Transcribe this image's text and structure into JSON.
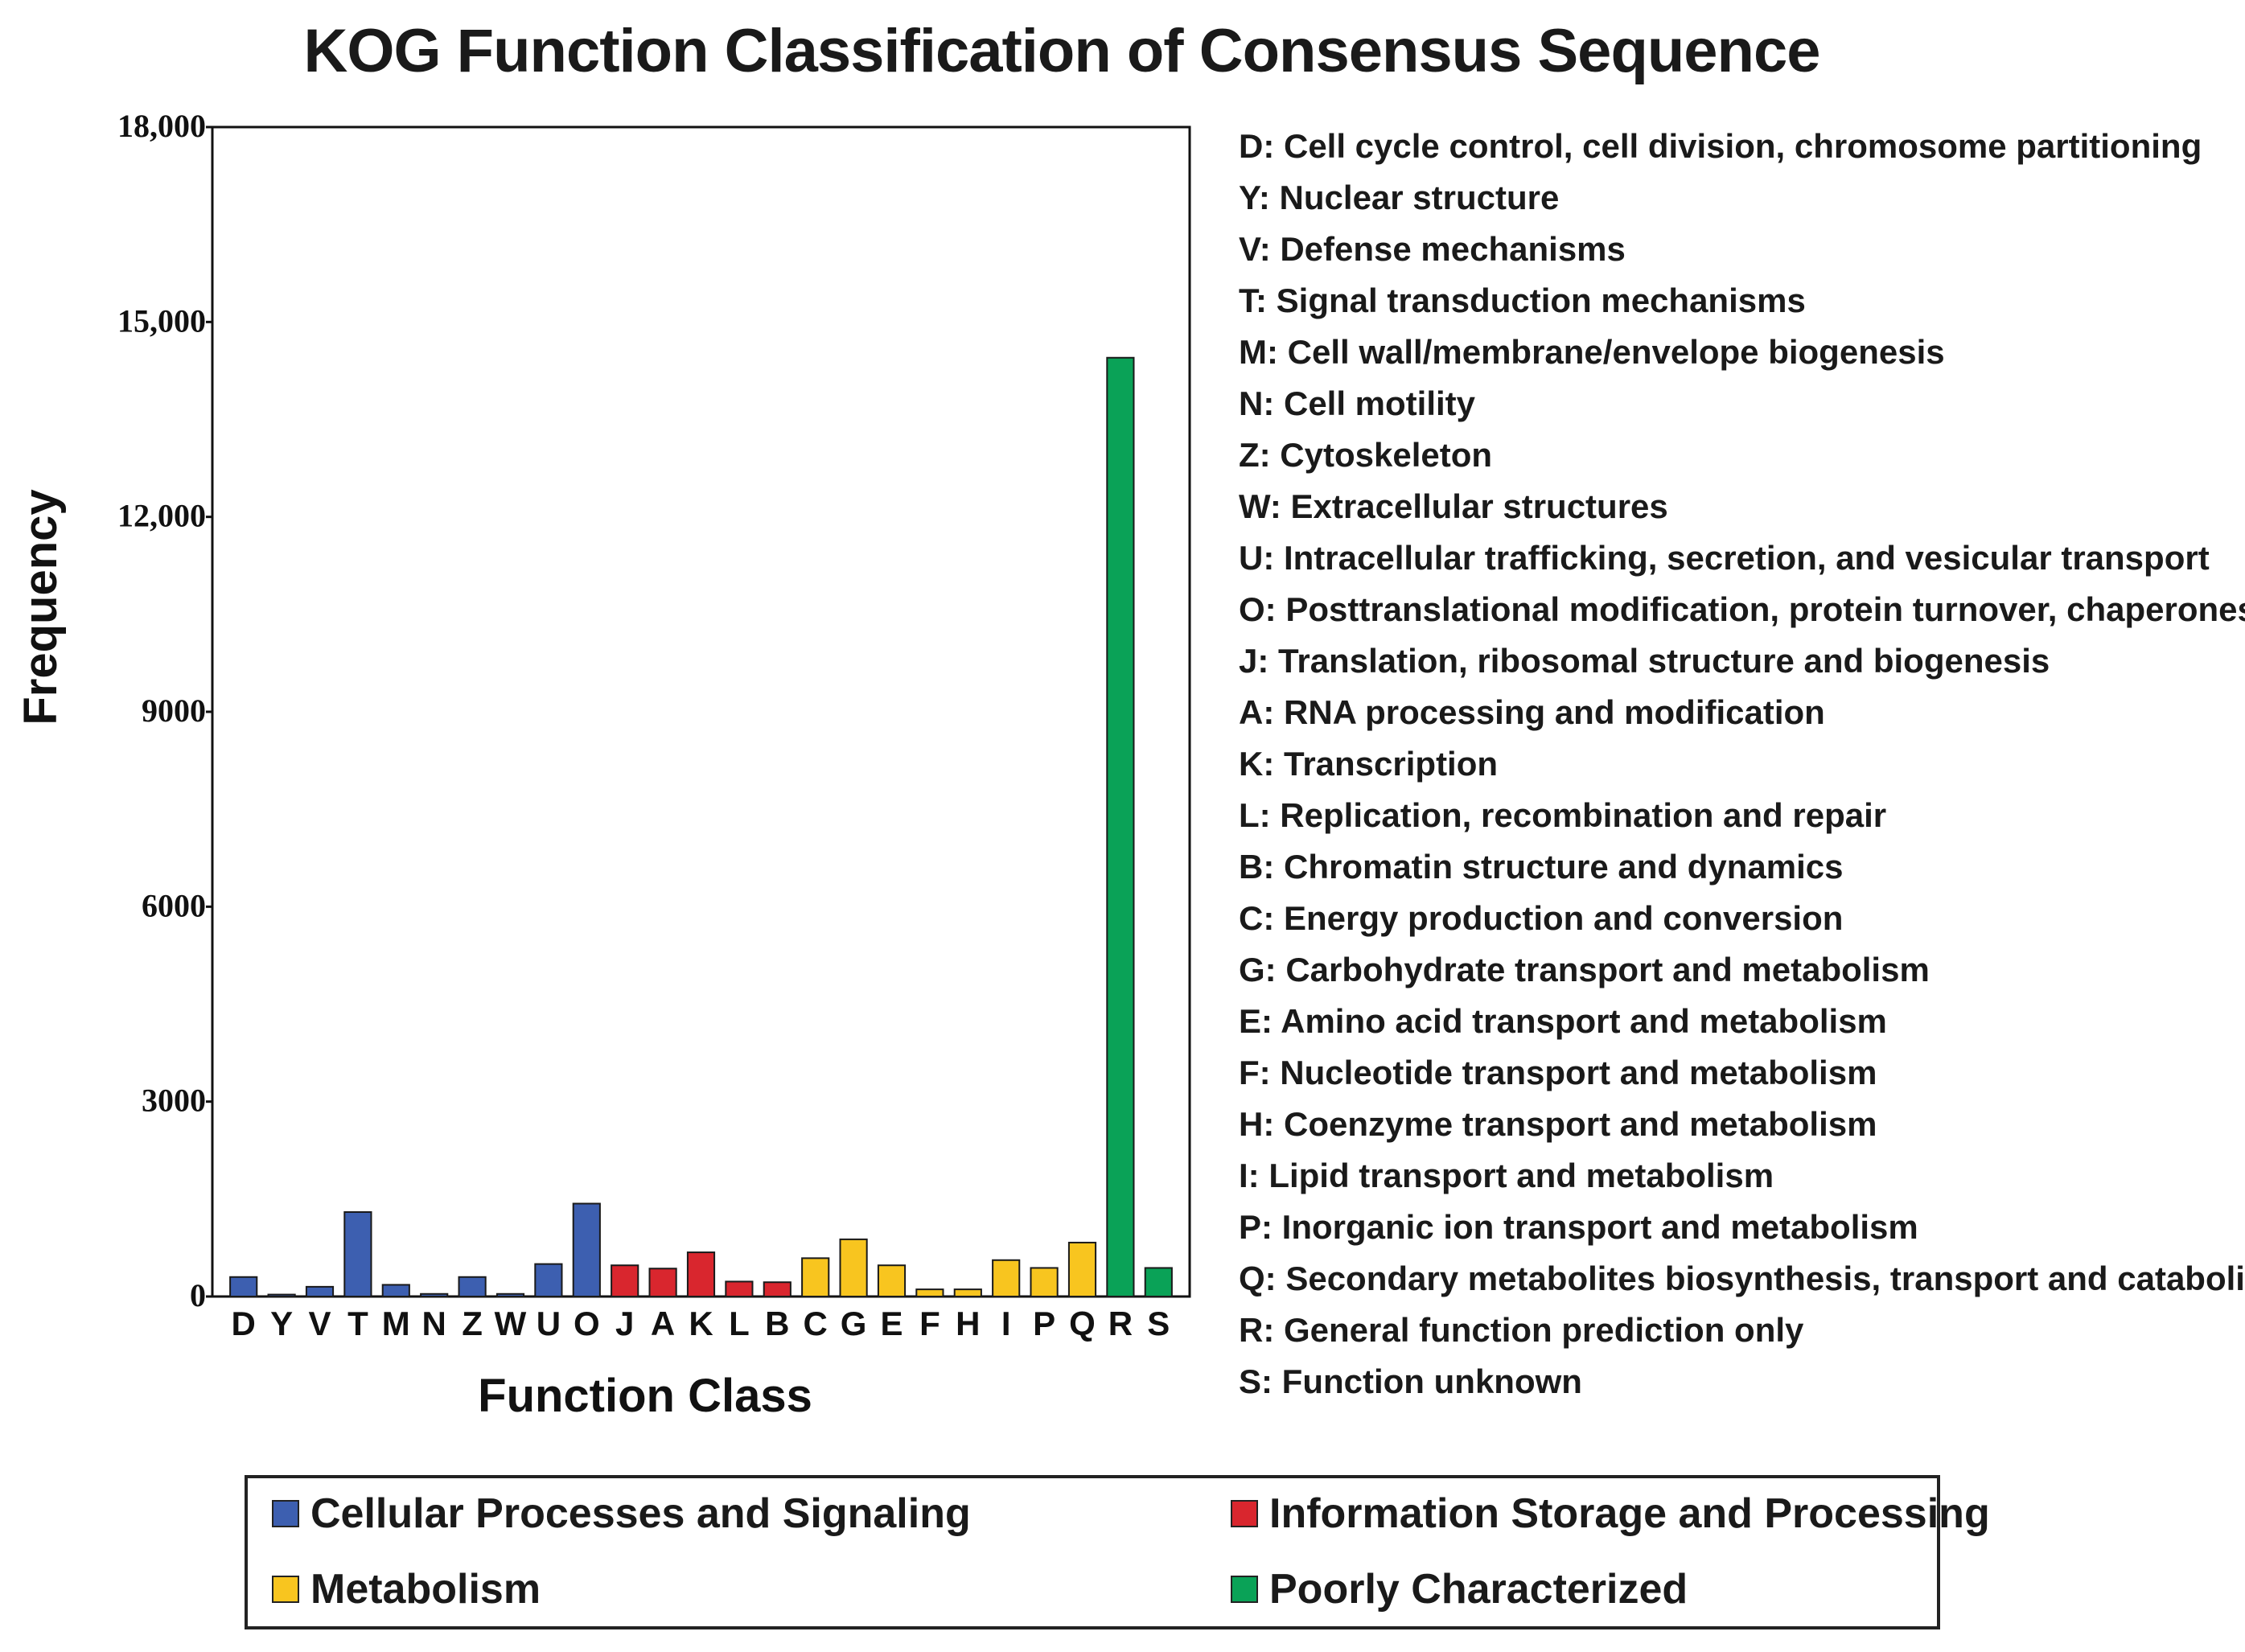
{
  "colors": {
    "cellular": "#3d5fb0",
    "information": "#d9262e",
    "metabolism": "#f8c51f",
    "poorly": "#0aa257"
  },
  "chart_data": {
    "type": "bar",
    "title": "KOG Function Classification of Consensus Sequence",
    "xlabel": "Function Class",
    "ylabel": "Frequency",
    "ylim": [
      0,
      18000
    ],
    "yticks": [
      0,
      3000,
      6000,
      9000,
      12000,
      15000,
      18000
    ],
    "ytick_labels": [
      "0",
      "3000",
      "6000",
      "9000",
      "12,000",
      "15,000",
      "18,000"
    ],
    "categories": [
      "D",
      "Y",
      "V",
      "T",
      "M",
      "N",
      "Z",
      "W",
      "U",
      "O",
      "J",
      "A",
      "K",
      "L",
      "B",
      "C",
      "G",
      "E",
      "F",
      "H",
      "I",
      "P",
      "Q",
      "R",
      "S"
    ],
    "values": [
      300,
      30,
      150,
      1300,
      180,
      40,
      300,
      40,
      500,
      1430,
      480,
      430,
      680,
      230,
      220,
      590,
      880,
      480,
      110,
      110,
      560,
      440,
      830,
      14450,
      440
    ],
    "groups": [
      "cellular",
      "cellular",
      "cellular",
      "cellular",
      "cellular",
      "cellular",
      "cellular",
      "cellular",
      "cellular",
      "cellular",
      "information",
      "information",
      "information",
      "information",
      "information",
      "metabolism",
      "metabolism",
      "metabolism",
      "metabolism",
      "metabolism",
      "metabolism",
      "metabolism",
      "metabolism",
      "poorly",
      "poorly"
    ],
    "descriptions": [
      "D: Cell cycle control, cell division, chromosome partitioning",
      "Y: Nuclear structure",
      "V: Defense mechanisms",
      "T: Signal transduction mechanisms",
      "M: Cell wall/membrane/envelope biogenesis",
      "N: Cell motility",
      "Z: Cytoskeleton",
      "W: Extracellular structures",
      "U: Intracellular trafficking, secretion, and vesicular transport",
      "O: Posttranslational modification, protein turnover, chaperones",
      "J: Translation, ribosomal structure and biogenesis",
      "A: RNA processing and modification",
      "K: Transcription",
      "L: Replication, recombination and repair",
      "B: Chromatin structure and dynamics",
      "C: Energy production and conversion",
      "G: Carbohydrate transport and metabolism",
      "E: Amino acid transport and metabolism",
      "F: Nucleotide transport and metabolism",
      "H: Coenzyme transport and metabolism",
      "I: Lipid transport and metabolism",
      "P: Inorganic ion transport and metabolism",
      "Q: Secondary metabolites biosynthesis, transport and catabolism",
      "R: General function prediction only",
      "S: Function unknown"
    ],
    "legend": [
      {
        "key": "cellular",
        "label": "Cellular Processes and Signaling"
      },
      {
        "key": "information",
        "label": "Information Storage and Processing"
      },
      {
        "key": "metabolism",
        "label": "Metabolism"
      },
      {
        "key": "poorly",
        "label": "Poorly Characterized"
      }
    ]
  }
}
